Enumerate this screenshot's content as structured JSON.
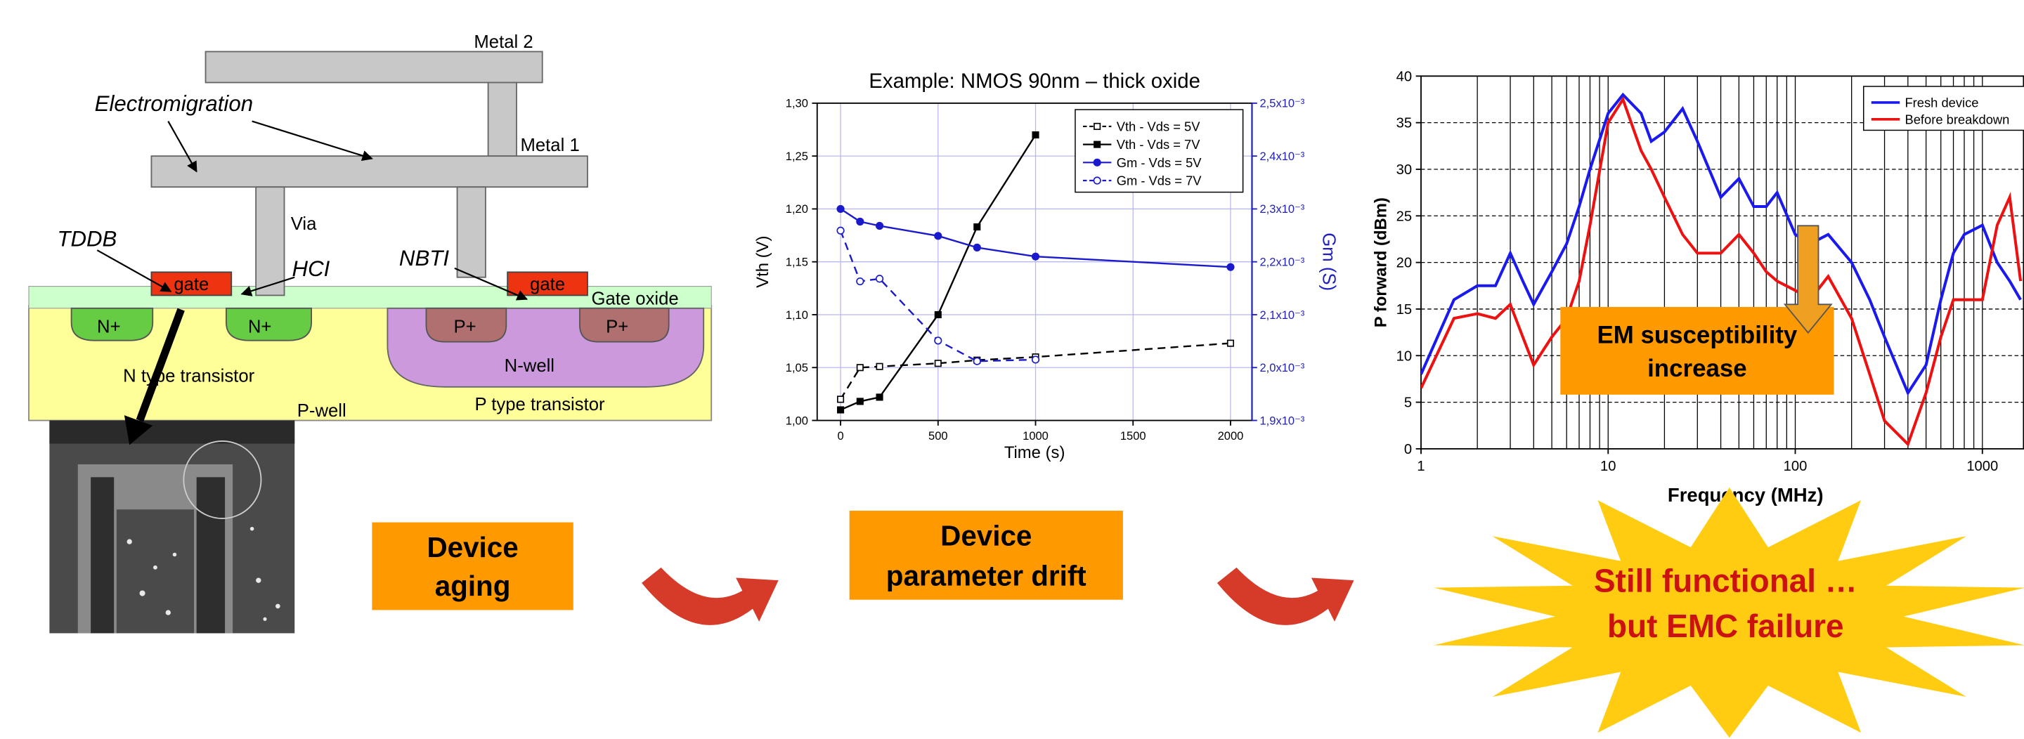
{
  "diagram": {
    "metal2": "Metal 2",
    "metal1": "Metal 1",
    "via": "Via",
    "electromigration": "Electromigration",
    "tddb": "TDDB",
    "hci": "HCI",
    "nbti": "NBTI",
    "gates": [
      "gate",
      "gate"
    ],
    "gate_oxide": "Gate oxide",
    "n_plus": [
      "N+",
      "N+"
    ],
    "p_plus": [
      "P+",
      "P+"
    ],
    "n_well": "N-well",
    "n_transistor": "N type transistor",
    "p_well": "P-well",
    "p_transistor": "P type transistor"
  },
  "steps": [
    [
      "Device",
      "aging"
    ],
    [
      "Device",
      "parameter drift"
    ]
  ],
  "callout": [
    "EM susceptibility",
    "increase"
  ],
  "conclusion": [
    "Still functional …",
    "but EMC failure"
  ],
  "chart_data": [
    {
      "type": "line",
      "title": "Example: NMOS 90nm – thick oxide",
      "xlabel": "Time (s)",
      "ylabel": "Vth (V)",
      "y2label": "Gm (S)",
      "x": [
        0,
        100,
        200,
        500,
        700,
        1000,
        2000
      ],
      "xlim": [
        -120,
        2110
      ],
      "xticks": [
        0,
        500,
        1000,
        1500,
        2000
      ],
      "ylim": [
        1.0,
        1.3
      ],
      "yticks": [
        {
          "value": 1.0,
          "label": "1,00"
        },
        {
          "value": 1.05,
          "label": "1,05"
        },
        {
          "value": 1.1,
          "label": "1,10"
        },
        {
          "value": 1.15,
          "label": "1,15"
        },
        {
          "value": 1.2,
          "label": "1,20"
        },
        {
          "value": 1.25,
          "label": "1,25"
        },
        {
          "value": 1.3,
          "label": "1,30"
        }
      ],
      "y2lim": [
        0.0019,
        0.0025
      ],
      "y2ticks": [
        {
          "value": 0.0019,
          "label": "1,9x10⁻³"
        },
        {
          "value": 0.002,
          "label": "2,0x10⁻³"
        },
        {
          "value": 0.0021,
          "label": "2,1x10⁻³"
        },
        {
          "value": 0.0022,
          "label": "2,2x10⁻³"
        },
        {
          "value": 0.0023,
          "label": "2,3x10⁻³"
        },
        {
          "value": 0.0024,
          "label": "2,4x10⁻³"
        },
        {
          "value": 0.0025,
          "label": "2,5x10⁻³"
        }
      ],
      "grid": true,
      "grid_color": "#b8b8f0",
      "legend": "upper right",
      "y2_color": "#2020c0",
      "series": [
        {
          "name": "Vth - Vds = 5V",
          "color": "#000000",
          "linestyle": "dashed",
          "marker": "square-open",
          "values": [
            1.02,
            1.05,
            1.051,
            1.054,
            1.057,
            1.06,
            1.073
          ]
        },
        {
          "name": "Vth - Vds = 7V",
          "color": "#000000",
          "linestyle": "solid",
          "marker": "square",
          "values": [
            1.01,
            1.018,
            1.022,
            1.1,
            1.183,
            1.27,
            null
          ]
        },
        {
          "name": "Gm - Vds = 5V",
          "color": "#1a1acc",
          "linestyle": "solid",
          "marker": "circle",
          "axis": "y2",
          "values": [
            0.0023,
            0.002276,
            0.002268,
            0.002249,
            0.002227,
            0.00221,
            0.00219
          ]
        },
        {
          "name": "Gm - Vds = 7V",
          "color": "#1a1acc",
          "linestyle": "dashed",
          "marker": "circle-open",
          "axis": "y2",
          "values": [
            0.002259,
            0.002163,
            0.002168,
            0.002051,
            0.002012,
            0.002015,
            null
          ]
        }
      ]
    },
    {
      "type": "line",
      "xlabel": "Frequency (MHz)",
      "ylabel": "P forward (dBm)",
      "xscale": "log",
      "x": [
        1,
        1.5,
        2,
        2.5,
        3,
        3.5,
        4,
        5,
        6,
        7,
        8,
        10,
        12,
        15,
        17,
        20,
        25,
        30,
        40,
        50,
        60,
        70,
        80,
        100,
        120,
        150,
        200,
        250,
        300,
        400,
        500,
        600,
        700,
        800,
        1000,
        1200,
        1400,
        1600
      ],
      "xlim": [
        1,
        1660
      ],
      "xticks": [
        1,
        10,
        100,
        1000
      ],
      "xgrid": [
        2,
        3,
        4,
        5,
        6,
        7,
        8,
        9,
        10,
        20,
        30,
        40,
        50,
        60,
        70,
        80,
        90,
        100,
        200,
        300,
        400,
        500,
        600,
        700,
        800,
        900,
        1000
      ],
      "ylim": [
        0,
        40
      ],
      "yticks": [
        0,
        5,
        10,
        15,
        20,
        25,
        30,
        35,
        40
      ],
      "grid": true,
      "grid_color": "#000000",
      "grid_dash": true,
      "legend": "upper right",
      "series": [
        {
          "name": "Fresh device",
          "color": "#1a1aee",
          "linestyle": "solid",
          "values": [
            8,
            16,
            17.5,
            17.5,
            21,
            18,
            15.5,
            19,
            22,
            26,
            30,
            36,
            38,
            36,
            33,
            34,
            36.5,
            33,
            27,
            29,
            26,
            26,
            27.5,
            23,
            22,
            23,
            20,
            16,
            12,
            6,
            9,
            16,
            21,
            23,
            24,
            20,
            18,
            16
          ]
        },
        {
          "name": "Before breakdown",
          "color": "#ee1111",
          "linestyle": "solid",
          "values": [
            6.5,
            14,
            14.5,
            14,
            15.5,
            12,
            9,
            12,
            14,
            18,
            24,
            35,
            37.5,
            32,
            30,
            27,
            23,
            21,
            21,
            23,
            21,
            19,
            18,
            17,
            16,
            18.5,
            14,
            8,
            3,
            0.5,
            6,
            12,
            16,
            16,
            16,
            24,
            27,
            18
          ]
        }
      ]
    }
  ]
}
